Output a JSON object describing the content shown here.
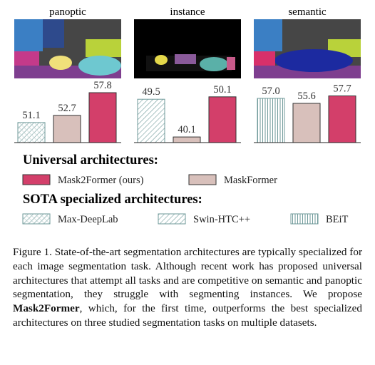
{
  "chart_data": [
    {
      "type": "bar",
      "title": "panoptic",
      "categories": [
        null,
        null,
        null
      ],
      "values": [
        51.1,
        52.7,
        57.8
      ],
      "colors": [
        "#6f9a9a",
        "#d8c0bb",
        "#d33f6a"
      ],
      "patterns": [
        "crosshatch",
        "none",
        "none"
      ],
      "ylim": [
        46.6,
        60.2
      ]
    },
    {
      "type": "bar",
      "title": "instance",
      "categories": [
        null,
        null,
        null
      ],
      "values": [
        49.5,
        40.1,
        50.1
      ],
      "colors": [
        "#6f9a9a",
        "#d8c0bb",
        "#d33f6a"
      ],
      "patterns": [
        "diagonal",
        "none",
        "none"
      ],
      "ylim": [
        38.7,
        53.8
      ]
    },
    {
      "type": "bar",
      "title": "semantic",
      "categories": [
        null,
        null,
        null
      ],
      "values": [
        57.0,
        55.6,
        57.7
      ],
      "value_labels": [
        "57.0",
        "55.6",
        "57.7"
      ],
      "colors": [
        "#6f9a9a",
        "#d8c0bb",
        "#d33f6a"
      ],
      "patterns": [
        "vertical",
        "none",
        "none"
      ],
      "ylim": [
        44.6,
        61.6
      ]
    }
  ],
  "legend": {
    "groups": [
      {
        "title": "Universal architectures:",
        "items": [
          {
            "name": "Mask2Former (ours)",
            "color": "#d33f6a",
            "pattern": "none"
          },
          {
            "name": "MaskFormer",
            "color": "#d8c0bb",
            "pattern": "none"
          }
        ]
      },
      {
        "title": "SOTA specialized architectures:",
        "items": [
          {
            "name": "Max-DeepLab",
            "color": "#6f9a9a",
            "pattern": "crosshatch"
          },
          {
            "name": "Swin-HTC++",
            "color": "#6f9a9a",
            "pattern": "diagonal"
          },
          {
            "name": "BEiT",
            "color": "#6f9a9a",
            "pattern": "vertical"
          }
        ]
      }
    ]
  },
  "caption": [
    "Figure 1. State-of-the-art segmentation architectures are typically specialized for each image segmentation task. Although recent work has proposed universal architectures that attempt all tasks and are competitive on semantic and panoptic segmentation, they struggle with segmenting instances. We propose ",
    "Mask2Former",
    ", which, for the first time, outperforms the best specialized architectures on three studied segmentation tasks on multiple datasets."
  ]
}
